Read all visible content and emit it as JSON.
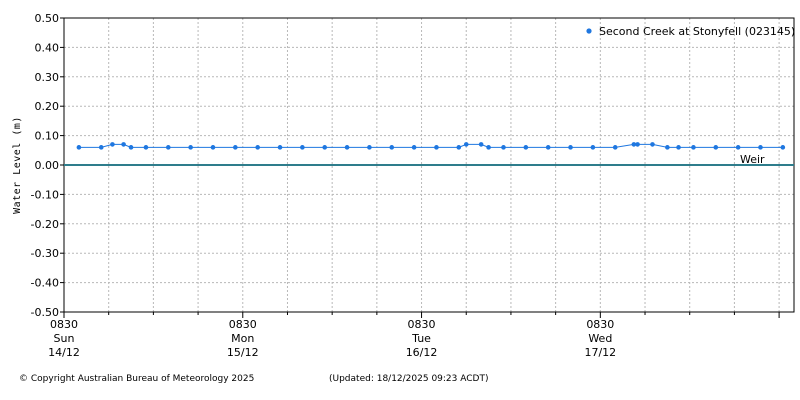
{
  "chart_data": {
    "type": "line",
    "title": "",
    "ylabel": "Water Level (m)",
    "xlabel": "",
    "ylim": [
      -0.5,
      0.5
    ],
    "yticks": [
      "0.50",
      "0.40",
      "0.30",
      "0.20",
      "0.10",
      "0.00",
      "-0.10",
      "-0.20",
      "-0.30",
      "-0.40",
      "-0.50"
    ],
    "xticks": [
      {
        "time": "0830",
        "day": "Sun",
        "date": "14/12",
        "hours": 0
      },
      {
        "time": "0830",
        "day": "Mon",
        "date": "15/12",
        "hours": 24
      },
      {
        "time": "0830",
        "day": "Tue",
        "date": "16/12",
        "hours": 48
      },
      {
        "time": "0830",
        "day": "Wed",
        "date": "17/12",
        "hours": 72
      }
    ],
    "grid": true,
    "legend_position": "top-right",
    "series": [
      {
        "name": "Second Creek at Stonyfell (023145)",
        "color": "#1f77e0",
        "x": [
          2,
          5,
          6.5,
          8,
          9,
          11,
          14,
          17,
          20,
          23,
          26,
          29,
          32,
          35,
          38,
          41,
          44,
          47,
          50,
          53,
          54,
          56,
          57,
          59,
          62,
          65,
          68,
          71,
          74,
          76.5,
          77,
          79,
          81,
          82.5,
          84.5,
          87.5,
          90.5,
          93.5,
          96.5
        ],
        "values": [
          0.06,
          0.06,
          0.07,
          0.07,
          0.06,
          0.06,
          0.06,
          0.06,
          0.06,
          0.06,
          0.06,
          0.06,
          0.06,
          0.06,
          0.06,
          0.06,
          0.06,
          0.06,
          0.06,
          0.06,
          0.07,
          0.07,
          0.06,
          0.06,
          0.06,
          0.06,
          0.06,
          0.06,
          0.06,
          0.07,
          0.07,
          0.07,
          0.06,
          0.06,
          0.06,
          0.06,
          0.06,
          0.06,
          0.06
        ]
      }
    ],
    "reference_line": {
      "label": "Weir",
      "value": 0.0,
      "color": "#2e7d8c"
    },
    "x_range_hours": [
      0,
      98
    ]
  },
  "footer": {
    "copyright": "© Copyright Australian Bureau of Meteorology 2025",
    "updated": "(Updated: 18/12/2025 09:23 ACDT)"
  }
}
